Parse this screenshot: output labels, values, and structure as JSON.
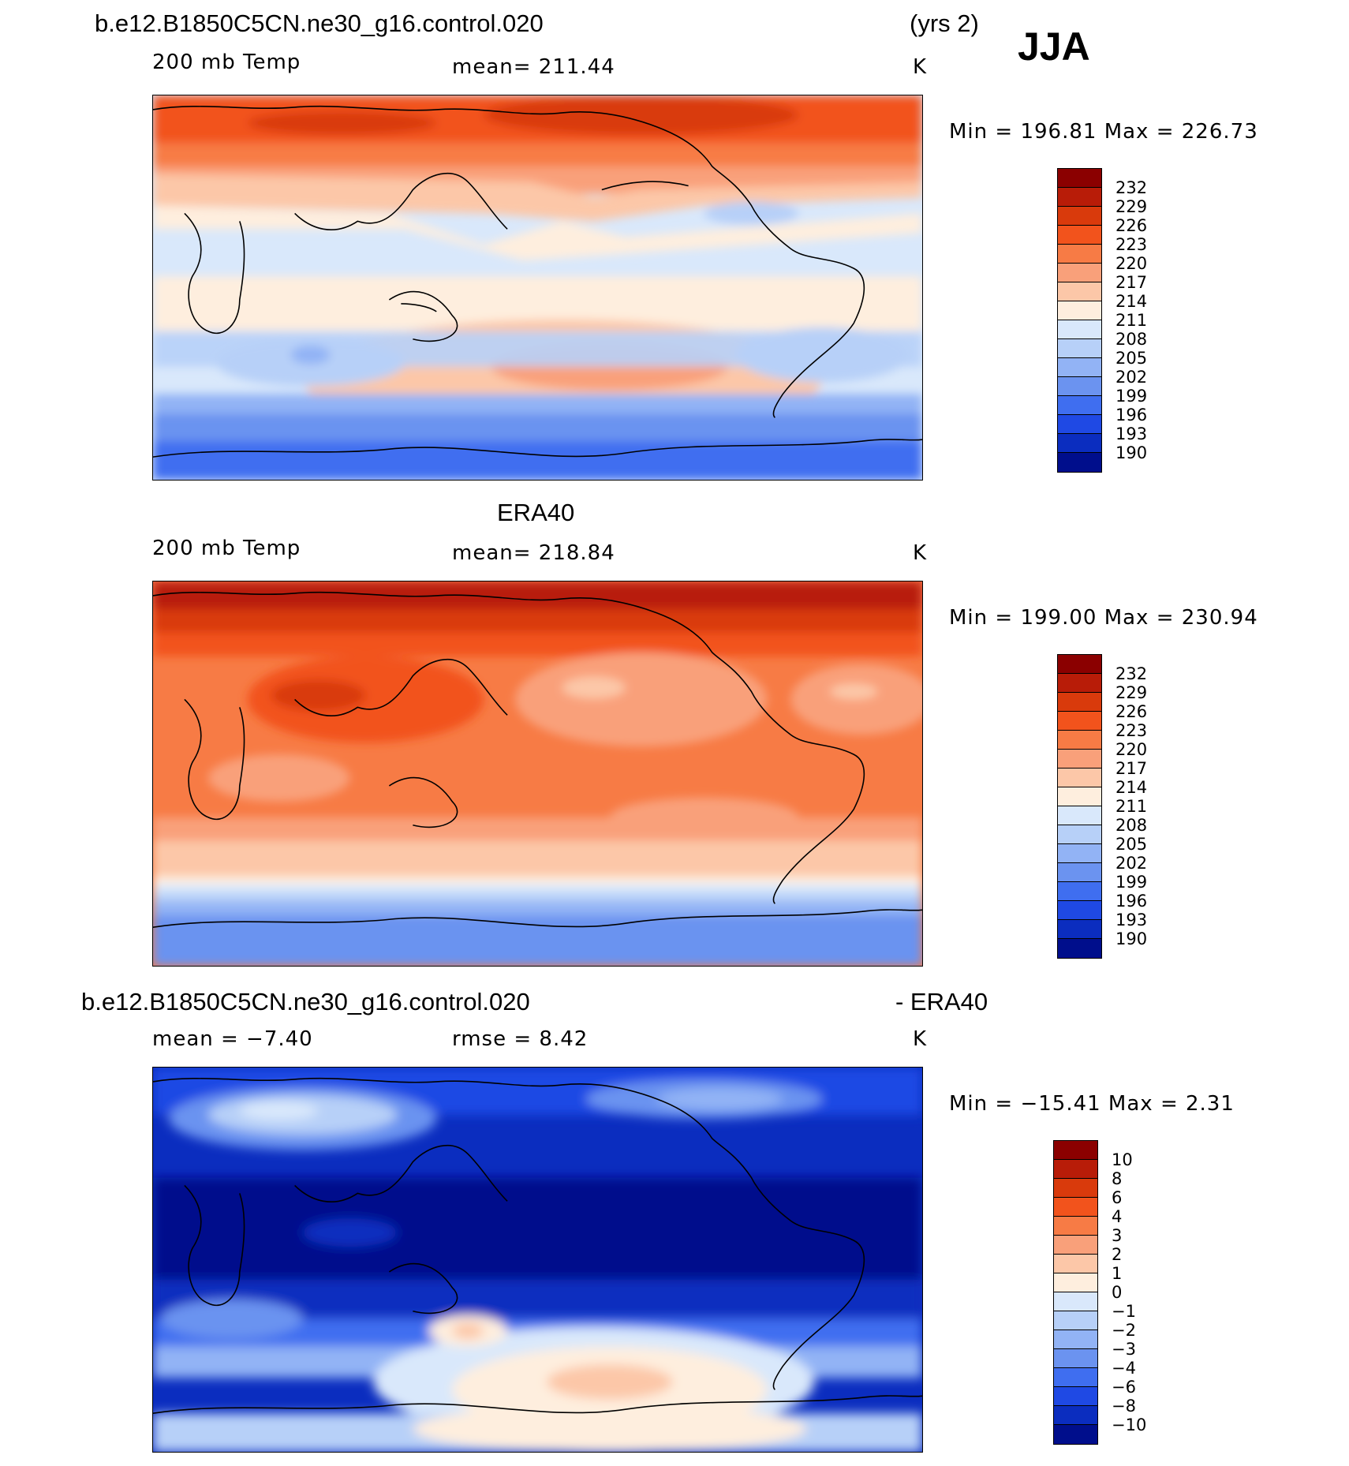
{
  "header": {
    "case_name": "b.e12.B1850C5CN.ne30_g16.control.020",
    "years": "(yrs 2)",
    "season": "JJA"
  },
  "panels": [
    {
      "title": "",
      "variable": "200 mb Temp",
      "stat_left": "",
      "stat_mid": "mean=  211.44",
      "units": "K",
      "minmax": "Min  =  196.81  Max  =  226.73",
      "levels": [
        "232",
        "229",
        "226",
        "223",
        "220",
        "217",
        "214",
        "211",
        "208",
        "205",
        "202",
        "199",
        "196",
        "193",
        "190"
      ]
    },
    {
      "title": "ERA40",
      "variable": "200 mb Temp",
      "stat_left": "",
      "stat_mid": "mean=  218.84",
      "units": "K",
      "minmax": "Min  =  199.00  Max  =  230.94",
      "levels": [
        "232",
        "229",
        "226",
        "223",
        "220",
        "217",
        "214",
        "211",
        "208",
        "205",
        "202",
        "199",
        "196",
        "193",
        "190"
      ]
    },
    {
      "title": "b.e12.B1850C5CN.ne30_g16.control.020",
      "title_right": "- ERA40",
      "variable": "",
      "stat_left": "mean =    −7.40",
      "stat_mid": "rmse =     8.42",
      "units": "K",
      "minmax": "Min  =  −15.41  Max  =     2.31",
      "levels": [
        "10",
        "8",
        "6",
        "4",
        "3",
        "2",
        "1",
        "0",
        "−1",
        "−2",
        "−3",
        "−4",
        "−6",
        "−8",
        "−10"
      ]
    }
  ],
  "colorbar_colors": [
    "#8b0000",
    "#b81c08",
    "#d93a0c",
    "#f2531c",
    "#f77b45",
    "#f9a07a",
    "#fcc7a8",
    "#feeede",
    "#d9e8fb",
    "#b7d0f8",
    "#92b3f5",
    "#6b93f0",
    "#3f6ef0",
    "#1f49e4",
    "#0b2dbf",
    "#000e8c"
  ]
}
